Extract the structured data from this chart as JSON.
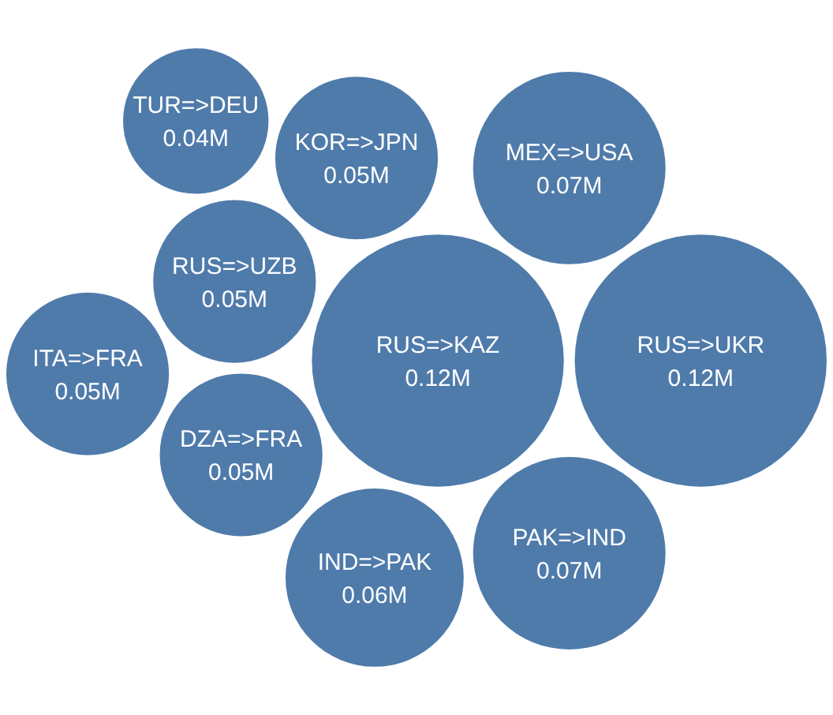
{
  "chart_data": {
    "type": "other",
    "categories": [
      "RUS=>KAZ",
      "RUS=>UKR",
      "PAK=>IND",
      "MEX=>USA",
      "IND=>PAK",
      "DZA=>FRA",
      "RUS=>UZB",
      "KOR=>JPN",
      "ITA=>FRA",
      "TUR=>DEU"
    ],
    "values": [
      0.12,
      0.12,
      0.07,
      0.07,
      0.06,
      0.05,
      0.05,
      0.05,
      0.05,
      0.04
    ],
    "value_labels": [
      "0.12M",
      "0.12M",
      "0.07M",
      "0.07M",
      "0.06M",
      "0.05M",
      "0.05M",
      "0.05M",
      "0.05M",
      "0.04M"
    ],
    "color": "#4f7bab"
  }
}
